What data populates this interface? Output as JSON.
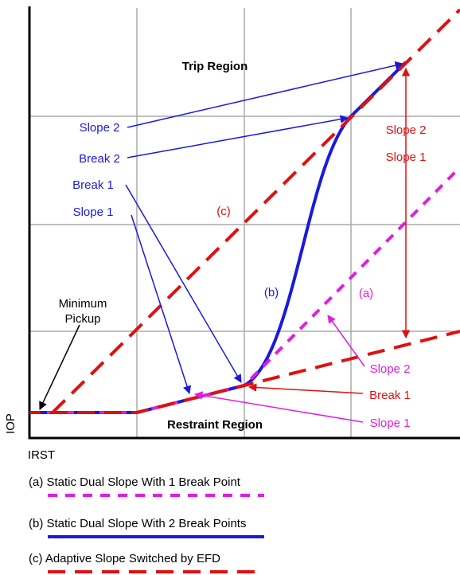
{
  "diagram": {
    "regions": {
      "trip": "Trip Region",
      "restraint": "Restraint Region"
    },
    "axes": {
      "y": "IOP",
      "x": "IRST"
    },
    "left_labels": {
      "slope2": "Slope 2",
      "break2": "Break 2",
      "break1": "Break 1",
      "slope1": "Slope 1"
    },
    "curve_labels": {
      "c": "(c)",
      "b": "(b)",
      "a": "(a)"
    },
    "red_labels": {
      "slope2": "Slope 2",
      "slope1": "Slope 1"
    },
    "minimum_pickup": [
      "Minimum",
      "Pickup"
    ],
    "right_labels": {
      "slope2": "Slope 2",
      "break1": "Break 1",
      "slope1": "Slope 1"
    },
    "legend": [
      "(a) Static Dual Slope With 1 Break Point",
      "(b) Static Dual Slope With 2 Break Points",
      "(c) Adaptive Slope Switched by EFD"
    ]
  }
}
